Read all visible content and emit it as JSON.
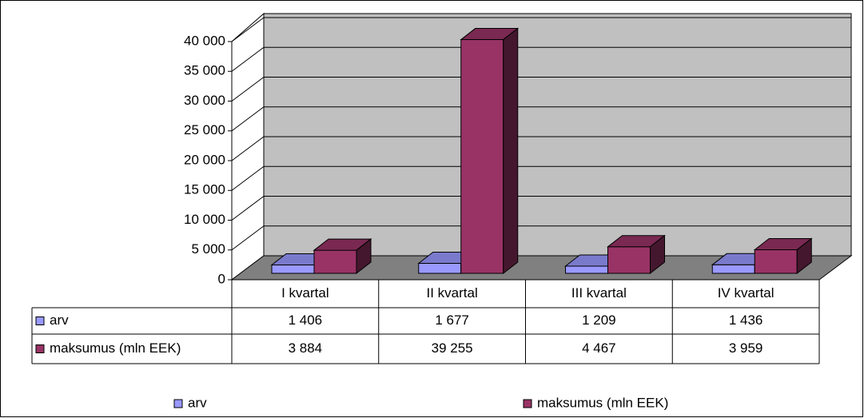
{
  "chart_data": {
    "type": "bar3d",
    "categories": [
      "I kvartal",
      "II kvartal",
      "III kvartal",
      "IV kvartal"
    ],
    "series": [
      {
        "name": "arv",
        "color": "#9999ff",
        "values": [
          1406,
          1677,
          1209,
          1436
        ],
        "value_labels": [
          "1 406",
          "1 677",
          "1 209",
          "1 436"
        ]
      },
      {
        "name": "maksumus (mln EEK)",
        "color": "#993366",
        "values": [
          3884,
          39255,
          4467,
          3959
        ],
        "value_labels": [
          "3 884",
          "39 255",
          "4 467",
          "3 959"
        ]
      }
    ],
    "ylim": [
      0,
      40000
    ],
    "yticks": [
      0,
      {
        "value": 5000,
        "label": "5 000"
      },
      {
        "value": 10000,
        "label": "10 000"
      },
      {
        "value": 15000,
        "label": "15 000"
      },
      {
        "value": 20000,
        "label": "20 000"
      },
      {
        "value": 25000,
        "label": "25 000"
      },
      {
        "value": 30000,
        "label": "30 000"
      },
      {
        "value": 35000,
        "label": "35 000"
      },
      {
        "value": 40000,
        "label": "40 000"
      }
    ],
    "grid": true,
    "legend": "bottom"
  }
}
